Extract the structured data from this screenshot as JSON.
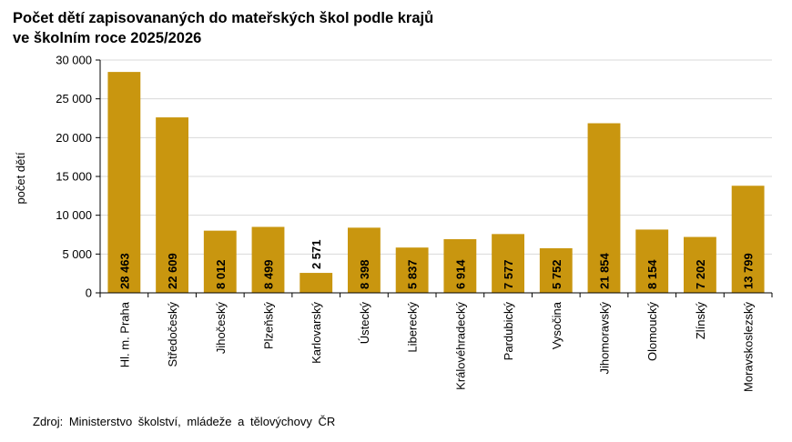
{
  "chart_data": {
    "type": "bar",
    "title": [
      "Počet dětí zapisovananých do mateřských škol podle krajů",
      "ve školním roce 2025/2026"
    ],
    "xlabel": "",
    "ylabel": "počet dětí",
    "ylim": [
      0,
      30000
    ],
    "yticks": [
      0,
      5000,
      10000,
      15000,
      20000,
      25000,
      30000
    ],
    "ytick_labels": [
      "0",
      "5 000",
      "10 000",
      "15 000",
      "20 000",
      "25 000",
      "30 000"
    ],
    "categories": [
      "Hl. m. Praha",
      "Středočeský",
      "Jihočeský",
      "Plzeňský",
      "Karlovarský",
      "Ústecký",
      "Liberecký",
      "Královéhradecký",
      "Pardubický",
      "Vysočina",
      "Jihomoravský",
      "Olomoucký",
      "Zlínský",
      "Moravskoslezský"
    ],
    "values": [
      28463,
      22609,
      8012,
      8499,
      2571,
      8398,
      5837,
      6914,
      7577,
      5752,
      21854,
      8154,
      7202,
      13799
    ],
    "value_labels": [
      "28 463",
      "22 609",
      "8 012",
      "8 499",
      "2 571",
      "8 398",
      "5 837",
      "6 914",
      "7 577",
      "5 752",
      "21 854",
      "8 154",
      "7 202",
      "13 799"
    ],
    "bar_color": "#C9960F",
    "grid_color": "#d9d9d9",
    "source": "Zdroj: Ministerstvo školství, mládeže a tělovýchovy ČR"
  }
}
